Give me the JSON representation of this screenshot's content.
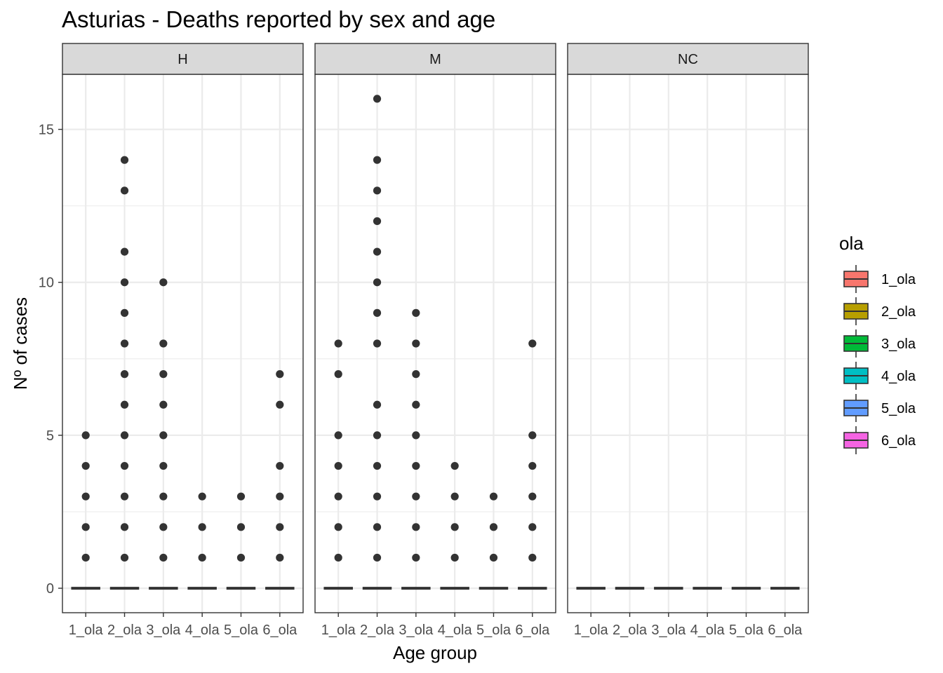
{
  "chart_data": {
    "type": "boxplot",
    "title": "Asturias - Deaths reported by sex and age",
    "xlabel": "Age group",
    "ylabel": "Nº of cases",
    "ylim": [
      -0.8,
      16.8
    ],
    "yticks": [
      0,
      5,
      10,
      15
    ],
    "categories": [
      "1_ola",
      "2_ola",
      "3_ola",
      "4_ola",
      "5_ola",
      "6_ola"
    ],
    "grid": true,
    "legend": {
      "title": "ola",
      "position": "right",
      "entries": [
        {
          "label": "1_ola",
          "color": "#F8766D"
        },
        {
          "label": "2_ola",
          "color": "#B79F00"
        },
        {
          "label": "3_ola",
          "color": "#00BA38"
        },
        {
          "label": "4_ola",
          "color": "#00BFC4"
        },
        {
          "label": "5_ola",
          "color": "#619CFF"
        },
        {
          "label": "6_ola",
          "color": "#F564E3"
        }
      ]
    },
    "panels": [
      {
        "name": "H",
        "median": [
          0,
          0,
          0,
          0,
          0,
          0
        ],
        "outliers": [
          [
            1,
            2,
            3,
            4,
            5
          ],
          [
            1,
            2,
            3,
            4,
            5,
            6,
            7,
            8,
            9,
            10,
            11,
            13,
            14
          ],
          [
            1,
            2,
            3,
            4,
            5,
            6,
            7,
            8,
            10
          ],
          [
            1,
            2,
            3
          ],
          [
            1,
            2,
            3
          ],
          [
            1,
            2,
            3,
            4,
            6,
            7
          ]
        ]
      },
      {
        "name": "M",
        "median": [
          0,
          0,
          0,
          0,
          0,
          0
        ],
        "outliers": [
          [
            1,
            2,
            3,
            4,
            5,
            7,
            8
          ],
          [
            1,
            2,
            3,
            4,
            5,
            6,
            8,
            9,
            10,
            11,
            12,
            13,
            14,
            16
          ],
          [
            1,
            2,
            3,
            4,
            5,
            6,
            7,
            8,
            9
          ],
          [
            1,
            2,
            3,
            4
          ],
          [
            1,
            2,
            3
          ],
          [
            1,
            2,
            3,
            4,
            5,
            8
          ]
        ]
      },
      {
        "name": "NC",
        "median": [
          0,
          0,
          0,
          0,
          0,
          0
        ],
        "outliers": [
          [],
          [],
          [],
          [],
          [],
          []
        ]
      }
    ]
  }
}
